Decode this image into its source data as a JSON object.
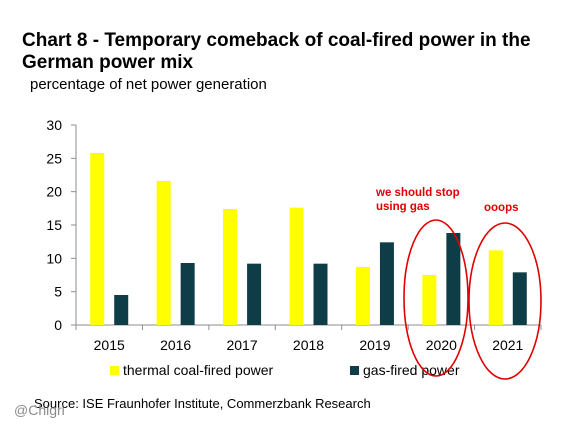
{
  "title": "Chart 8 - Temporary comeback of coal-fired power in the German power mix",
  "subtitle": "percentage of net power generation",
  "source": "Source: ISE Fraunhofer Institute, Commerzbank Research",
  "watermark": "@Chigri",
  "annotations": {
    "a1": "we should stop using gas",
    "a2": "ooops"
  },
  "colors": {
    "coal": "#ffff00",
    "gas": "#0f3d47",
    "annotation": "#e00000",
    "axis": "#8c8c8c"
  },
  "chart_data": {
    "type": "bar",
    "categories": [
      "2015",
      "2016",
      "2017",
      "2018",
      "2019",
      "2020",
      "2021"
    ],
    "series": [
      {
        "name": "thermal coal-fired power",
        "values": [
          25.8,
          21.6,
          17.4,
          17.6,
          8.7,
          7.5,
          11.2
        ]
      },
      {
        "name": "gas-fired power",
        "values": [
          4.5,
          9.3,
          9.2,
          9.2,
          12.4,
          13.8,
          7.9
        ]
      }
    ],
    "ylim": [
      0,
      30
    ],
    "yticks": [
      "0",
      "5",
      "10",
      "15",
      "20",
      "25",
      "30"
    ],
    "grid": false,
    "legend": "bottom"
  }
}
